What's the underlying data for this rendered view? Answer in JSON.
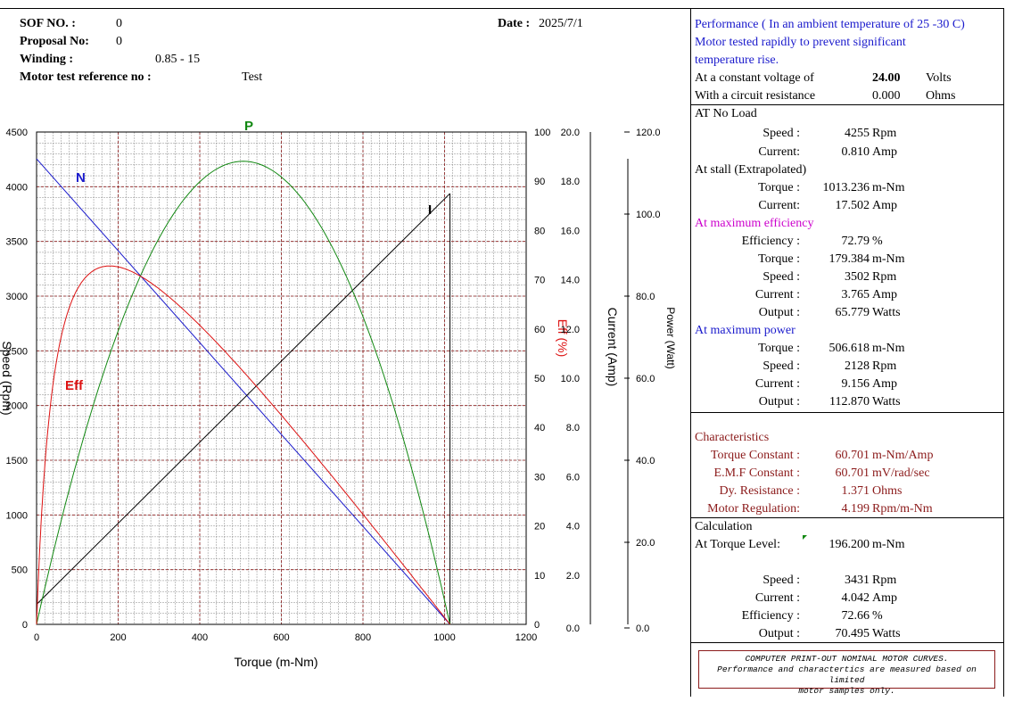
{
  "header": {
    "sof_label": "SOF NO.  :",
    "sof_value": "0",
    "proposal_label": "Proposal No:",
    "proposal_value": "0",
    "winding_label": "Winding  :",
    "winding_value": "0.85   -   15",
    "ref_label": "Motor test reference no :",
    "ref_value": "Test",
    "date_label": "Date :",
    "date_value": "2025/7/1"
  },
  "perf": {
    "line1": "Performance ( In an ambient temperature of 25 -30 C)",
    "line2": "Motor tested rapidly to prevent significant",
    "line3": "temperature rise.",
    "voltage_label": "At  a  constant  voltage of",
    "voltage_value": "24.00",
    "voltage_unit": "Volts",
    "res_label": "With a circuit resistance",
    "res_value": "0.000",
    "res_unit": "Ohms"
  },
  "noload": {
    "title": "AT No Load",
    "speed_label": "Speed :",
    "speed_value": "4255",
    "speed_unit": "Rpm",
    "current_label": "Current:",
    "current_value": "0.810",
    "current_unit": "Amp"
  },
  "stall": {
    "title": "At stall (Extrapolated)",
    "torque_label": "Torque :",
    "torque_value": "1013.236",
    "torque_unit": "m-Nm",
    "current_label": "Current:",
    "current_value": "17.502",
    "current_unit": "Amp"
  },
  "maxeff": {
    "title": "At maximum efficiency",
    "eff_label": "Efficiency :",
    "eff_value": "72.79",
    "eff_unit": "%",
    "torque_label": "Torque :",
    "torque_value": "179.384",
    "torque_unit": "m-Nm",
    "speed_label": "Speed :",
    "speed_value": "3502",
    "speed_unit": "Rpm",
    "current_label": "Current :",
    "current_value": "3.765",
    "current_unit": "Amp",
    "output_label": "Output :",
    "output_value": "65.779",
    "output_unit": "Watts"
  },
  "maxpow": {
    "title": "At maximum power",
    "torque_label": "Torque :",
    "torque_value": "506.618",
    "torque_unit": "m-Nm",
    "speed_label": "Speed :",
    "speed_value": "2128",
    "speed_unit": "Rpm",
    "current_label": "Current :",
    "current_value": "9.156",
    "current_unit": "Amp",
    "output_label": "Output :",
    "output_value": "112.870",
    "output_unit": "Watts"
  },
  "char": {
    "title": "Characteristics",
    "tc_label": "Torque Constant :",
    "tc_value": "60.701",
    "tc_unit": "m-Nm/Amp",
    "emf_label": "E.M.F Constant :",
    "emf_value": "60.701",
    "emf_unit": "mV/rad/sec",
    "dyr_label": "Dy. Resistance   :",
    "dyr_value": "1.371",
    "dyr_unit": "Ohms",
    "reg_label": "Motor Regulation:",
    "reg_value": "4.199",
    "reg_unit": "Rpm/m-Nm"
  },
  "calc": {
    "title": "Calculation",
    "tl_label": "At Torque Level:",
    "tl_value": "196.200",
    "tl_unit": "m-Nm",
    "speed_label": "Speed :",
    "speed_value": "3431",
    "speed_unit": "Rpm",
    "current_label": "Current :",
    "current_value": "4.042",
    "current_unit": "Amp",
    "eff_label": "Efficiency :",
    "eff_value": "72.66",
    "eff_unit": "%",
    "output_label": "Output :",
    "output_value": "70.495",
    "output_unit": "Watts"
  },
  "note": {
    "line1": "COMPUTER PRINT-OUT NOMINAL MOTOR CURVES.",
    "line2": "Performance and charactertics are measured based on limited",
    "line3": "motor samples only."
  },
  "colors": {
    "speed": "#1a1acc",
    "efficiency": "#dd1111",
    "power": "#118811",
    "current": "#000000",
    "grid_major": "#8b1a1a",
    "grid_minor": "#888888"
  },
  "chart_data": {
    "type": "line",
    "xlabel": "Torque  (m-Nm)",
    "xlim": [
      0,
      1200
    ],
    "x_ticks": [
      "0",
      "200",
      "400",
      "600",
      "800",
      "1000",
      "1200"
    ],
    "axes": {
      "speed": {
        "label": "Speed (Rpm)",
        "lim": [
          0,
          4500
        ],
        "ticks": [
          "0",
          "500",
          "1000",
          "1500",
          "2000",
          "2500",
          "3000",
          "3500",
          "4000",
          "4500"
        ]
      },
      "efficiency": {
        "label": "Eff (%)",
        "lim": [
          0,
          100
        ],
        "ticks": [
          "0",
          "10",
          "20",
          "30",
          "40",
          "50",
          "60",
          "70",
          "80",
          "90",
          "100"
        ]
      },
      "current": {
        "label": "Current (Amp)",
        "lim": [
          0,
          20
        ],
        "ticks": [
          "0.0",
          "2.0",
          "4.0",
          "6.0",
          "8.0",
          "10.0",
          "12.0",
          "14.0",
          "16.0",
          "18.0",
          "20.0"
        ]
      },
      "power": {
        "label": "Power (Watt)",
        "lim": [
          0,
          120
        ],
        "ticks": [
          "0.0",
          "20.0",
          "40.0",
          "60.0",
          "80.0",
          "100.0",
          "120.0"
        ]
      }
    },
    "series": [
      {
        "name": "N",
        "axis": "speed",
        "kind": "linear",
        "x0": 0,
        "y0": 4255,
        "x1": 1013.236,
        "y1": 0
      },
      {
        "name": "I",
        "axis": "current",
        "kind": "linear",
        "x0": 0,
        "y0": 0.81,
        "x1": 1013.236,
        "y1": 17.502
      },
      {
        "name": "P",
        "axis": "power",
        "kind": "power",
        "no_load_speed": 4255,
        "stall_torque": 1013.236
      },
      {
        "name": "Eff",
        "axis": "efficiency",
        "kind": "efficiency",
        "no_load_speed": 4255,
        "stall_torque": 1013.236,
        "no_load_current": 0.81,
        "stall_current": 17.502,
        "voltage": 24.0
      }
    ]
  }
}
